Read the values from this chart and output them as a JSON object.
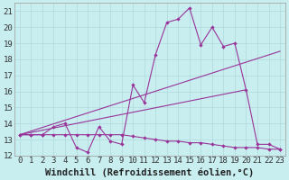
{
  "xlabel": "Windchill (Refroidissement éolien,°C)",
  "bg_color": "#c8eef0",
  "grid_color": "#b0d8da",
  "line_color": "#993399",
  "xlim": [
    -0.5,
    23.5
  ],
  "ylim": [
    12,
    21.5
  ],
  "xticks": [
    0,
    1,
    2,
    3,
    4,
    5,
    6,
    7,
    8,
    9,
    10,
    11,
    12,
    13,
    14,
    15,
    16,
    17,
    18,
    19,
    20,
    21,
    22,
    23
  ],
  "yticks": [
    12,
    13,
    14,
    15,
    16,
    17,
    18,
    19,
    20,
    21
  ],
  "line1_x": [
    0,
    1,
    2,
    3,
    4,
    5,
    6,
    7,
    8,
    9,
    10,
    11,
    12,
    13,
    14,
    15,
    16,
    17,
    18,
    19,
    20,
    21,
    22,
    23
  ],
  "line1_y": [
    13.3,
    13.3,
    13.3,
    13.8,
    14.0,
    12.5,
    12.2,
    13.8,
    12.9,
    12.7,
    16.4,
    15.3,
    18.3,
    20.3,
    20.5,
    21.2,
    18.9,
    20.0,
    18.8,
    19.0,
    16.1,
    12.7,
    12.7,
    12.4
  ],
  "line2_x": [
    0,
    1,
    2,
    3,
    4,
    5,
    6,
    7,
    8,
    9,
    10,
    11,
    12,
    13,
    14,
    15,
    16,
    17,
    18,
    19,
    20,
    21,
    22,
    23
  ],
  "line2_y": [
    13.3,
    13.3,
    13.3,
    13.3,
    13.3,
    13.3,
    13.3,
    13.3,
    13.3,
    13.3,
    13.2,
    13.1,
    13.0,
    12.9,
    12.9,
    12.8,
    12.8,
    12.7,
    12.6,
    12.5,
    12.5,
    12.5,
    12.4,
    12.4
  ],
  "line3_x": [
    0,
    23
  ],
  "line3_y": [
    13.3,
    18.5
  ],
  "line4_x": [
    0,
    20
  ],
  "line4_y": [
    13.3,
    16.1
  ],
  "xlabel_fontsize": 7.5,
  "tick_fontsize": 6.5
}
